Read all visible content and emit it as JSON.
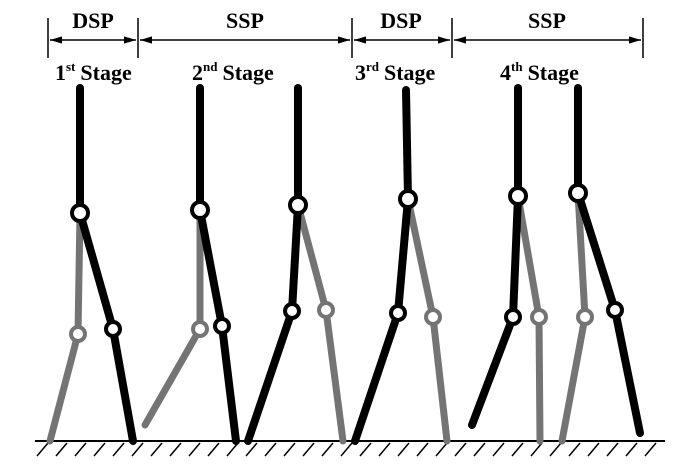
{
  "phases": [
    "DSP",
    "SSP",
    "DSP",
    "SSP"
  ],
  "stages": [
    {
      "num": "1",
      "sup": "st",
      "word": "Stage"
    },
    {
      "num": "2",
      "sup": "nd",
      "word": "Stage"
    },
    {
      "num": "3",
      "sup": "rd",
      "word": "Stage"
    },
    {
      "num": "4",
      "sup": "th",
      "word": "Stage"
    }
  ]
}
